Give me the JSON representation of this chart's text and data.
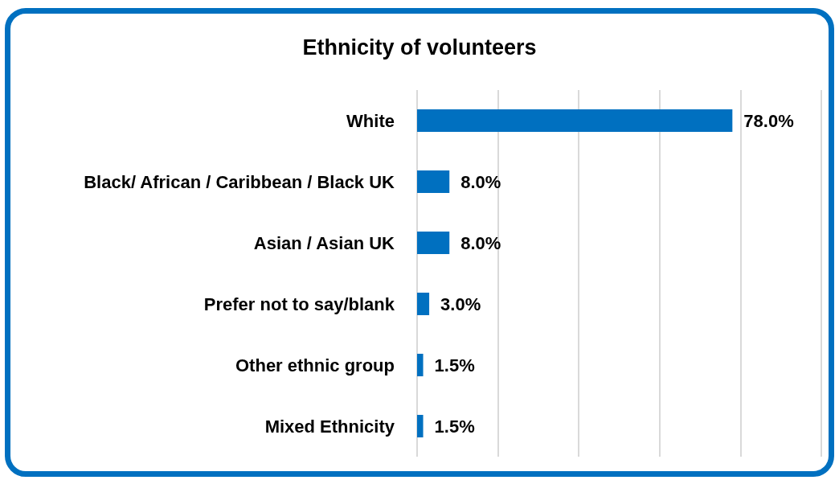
{
  "chart_data": {
    "type": "bar",
    "orientation": "horizontal",
    "title": "Ethnicity of volunteers",
    "categories": [
      "White",
      "Black/ African / Caribbean / Black UK",
      "Asian / Asian UK",
      "Prefer not to say/blank",
      "Other ethnic group",
      "Mixed Ethnicity"
    ],
    "values": [
      78.0,
      8.0,
      8.0,
      3.0,
      1.5,
      1.5
    ],
    "value_labels": [
      "78.0%",
      "8.0%",
      "8.0%",
      "3.0%",
      "1.5%",
      "1.5%"
    ],
    "color": "#0070c0",
    "xlim": [
      0,
      100
    ],
    "xticks": [
      {
        "value": 0,
        "label": null
      },
      {
        "value": 20,
        "label": null
      },
      {
        "value": 40,
        "label": null
      },
      {
        "value": 60,
        "label": null
      },
      {
        "value": 80,
        "label": null
      },
      {
        "value": 100,
        "label": null
      }
    ],
    "grid": "x",
    "tick_labels": "y"
  }
}
